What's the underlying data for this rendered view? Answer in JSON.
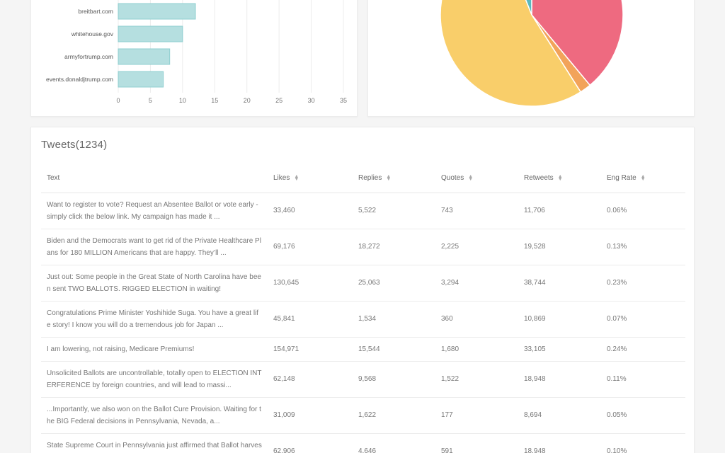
{
  "bar_chart": {
    "chart_data": {
      "type": "bar",
      "orientation": "horizontal",
      "categories": [
        "breitbart.com",
        "whitehouse.gov",
        "armyfortrump.com",
        "events.donaldjtrump.com"
      ],
      "values": [
        12,
        10,
        8,
        7
      ],
      "xlim": [
        0,
        35
      ],
      "xticks": [
        "0",
        "5",
        "10",
        "15",
        "20",
        "25",
        "30",
        "35"
      ],
      "grid": true,
      "bar_color": "#b5dfe0",
      "bar_stroke": "#8fcfd0"
    }
  },
  "pie_chart": {
    "chart_data": {
      "type": "pie",
      "slices": [
        {
          "value": 39,
          "color": "#ee6a80"
        },
        {
          "value": 2,
          "color": "#f2a35a"
        },
        {
          "value": 53,
          "color": "#f9ce6a"
        },
        {
          "value": 6,
          "color": "#5ab8bd"
        }
      ]
    }
  },
  "tweets": {
    "title": "Tweets(1234)",
    "columns": [
      "Text",
      "Likes",
      "Replies",
      "Quotes",
      "Retweets",
      "Eng Rate"
    ],
    "rows": [
      {
        "text": "Want to register to vote? Request an Absentee Ballot or vote early - simply click the below link. My campaign has made it ...",
        "likes": "33,460",
        "replies": "5,522",
        "quotes": "743",
        "retweets": "11,706",
        "eng_rate": "0.06%"
      },
      {
        "text": "Biden and the Democrats want to get rid of the Private Healthcare Plans for 180 MILLION Americans that are happy. They’ll ...",
        "likes": "69,176",
        "replies": "18,272",
        "quotes": "2,225",
        "retweets": "19,528",
        "eng_rate": "0.13%"
      },
      {
        "text": "Just out: Some people in the Great State of North Carolina have been sent TWO BALLOTS. RIGGED ELECTION in waiting!",
        "likes": "130,645",
        "replies": "25,063",
        "quotes": "3,294",
        "retweets": "38,744",
        "eng_rate": "0.23%"
      },
      {
        "text": "Congratulations Prime Minister Yoshihide Suga. You have a great life story! I know you will do a tremendous job for Japan ...",
        "likes": "45,841",
        "replies": "1,534",
        "quotes": "360",
        "retweets": "10,869",
        "eng_rate": "0.07%"
      },
      {
        "text": "I am lowering, not raising, Medicare Premiums!",
        "likes": "154,971",
        "replies": "15,544",
        "quotes": "1,680",
        "retweets": "33,105",
        "eng_rate": "0.24%"
      },
      {
        "text": "Unsolicited Ballots are uncontrollable, totally open to ELECTION INTERFERENCE by foreign countries, and will lead to massi...",
        "likes": "62,148",
        "replies": "9,568",
        "quotes": "1,522",
        "retweets": "18,948",
        "eng_rate": "0.11%"
      },
      {
        "text": "...Importantly, we also won on the Ballot Cure Provision. Waiting for the BIG Federal decisions in Pennsylvania, Nevada, a...",
        "likes": "31,009",
        "replies": "1,622",
        "quotes": "177",
        "retweets": "8,694",
        "eng_rate": "0.05%"
      },
      {
        "text": "State Supreme Court in Pennsylvania just affirmed that Ballot harvesting ... will end! We will be watching that the D...",
        "likes": "62,906",
        "replies": "4,646",
        "quotes": "591",
        "retweets": "18,948",
        "eng_rate": "0.10%"
      }
    ]
  }
}
